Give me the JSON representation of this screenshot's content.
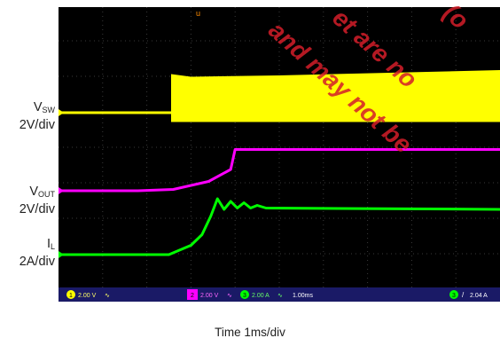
{
  "chart_data": {
    "type": "line",
    "title": "",
    "xlabel": "Time  1ms/div",
    "x_division_ms": 1,
    "x_divisions": 10,
    "series": [
      {
        "id": "vsw",
        "name_main": "V",
        "name_sub": "SW",
        "scale": "2V/div",
        "color": "#ffff00",
        "kind": "switching",
        "points": [
          [
            0,
            0
          ],
          [
            2.55,
            0
          ],
          [
            2.6,
            0.6
          ],
          [
            10,
            0.6
          ]
        ],
        "band_top": [
          [
            2.55,
            1.45
          ],
          [
            3.0,
            1.35
          ],
          [
            5.0,
            1.4
          ],
          [
            10,
            1.6
          ]
        ],
        "band_bottom": [
          [
            2.55,
            -0.35
          ],
          [
            10,
            -0.35
          ]
        ]
      },
      {
        "id": "vout",
        "name_main": "V",
        "name_sub": "OUT",
        "scale": "2V/div",
        "color": "#ff00ff",
        "kind": "line",
        "points": [
          [
            0,
            0
          ],
          [
            1.8,
            0
          ],
          [
            2.6,
            0.05
          ],
          [
            3.4,
            0.35
          ],
          [
            3.9,
            0.8
          ],
          [
            4.0,
            1.55
          ],
          [
            10,
            1.55
          ]
        ]
      },
      {
        "id": "il",
        "name_main": "I",
        "name_sub": "L",
        "scale": "2A/div",
        "color": "#00ff00",
        "kind": "line",
        "points": [
          [
            0,
            0
          ],
          [
            2.5,
            0
          ],
          [
            3.0,
            0.35
          ],
          [
            3.25,
            0.75
          ],
          [
            3.45,
            1.45
          ],
          [
            3.6,
            2.1
          ],
          [
            3.75,
            1.7
          ],
          [
            3.9,
            2.0
          ],
          [
            4.05,
            1.75
          ],
          [
            4.2,
            1.95
          ],
          [
            4.35,
            1.75
          ],
          [
            4.5,
            1.85
          ],
          [
            4.7,
            1.75
          ],
          [
            10,
            1.7
          ]
        ]
      }
    ]
  },
  "scope": {
    "status_bar": {
      "ch1_label": "1",
      "ch1_scale": "2.00 V",
      "ch1_symbol": "∿",
      "ch2_label": "2",
      "ch2_scale": "2.00 V",
      "ch2_symbol": "∿",
      "ch3_label": "3",
      "ch3_scale": "2.00 A",
      "ch3_symbol": "∿",
      "timebase": "1.00ms",
      "trigger_label": "3",
      "trigger_symbol": "/",
      "trigger_level": "2.04 A"
    },
    "trigger_marker": "u"
  },
  "watermark": {
    "lines": [
      "et are no",
      "and may not be",
      "(o"
    ]
  },
  "colors": {
    "screen_bg": "#000000",
    "grid": "#3a3a3a",
    "status_bar_bg": "#1a1a66"
  }
}
